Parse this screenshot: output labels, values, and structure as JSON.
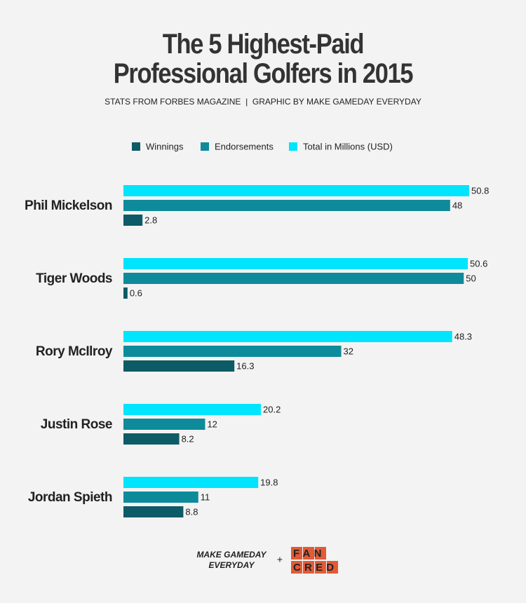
{
  "chart_data": {
    "type": "hbar",
    "title": "The 5 Highest-Paid Professional Golfers in 2015",
    "subtitle": "STATS FROM FORBES MAGAZINE  |  GRAPHIC BY MAKE GAMEDAY EVERYDAY",
    "categories": [
      "Phil Mickelson",
      "Tiger Woods",
      "Rory McIlroy",
      "Justin Rose",
      "Jordan Spieth"
    ],
    "series": [
      {
        "name": "Winnings",
        "color": "#0d5b66",
        "values": [
          2.8,
          0.6,
          16.3,
          8.2,
          8.8
        ]
      },
      {
        "name": "Endorsements",
        "color": "#0e8b9b",
        "values": [
          48,
          50,
          32,
          12,
          11
        ]
      },
      {
        "name": "Total in Millions (USD)",
        "color": "#00e4fd",
        "values": [
          50.8,
          50.6,
          48.3,
          20.2,
          19.8
        ]
      }
    ]
  },
  "footer": {
    "brand": [
      "MAKE GAMEDAY",
      "EVERYDAY"
    ],
    "plus": "+",
    "logo": [
      "FAN",
      "CRED"
    ]
  }
}
